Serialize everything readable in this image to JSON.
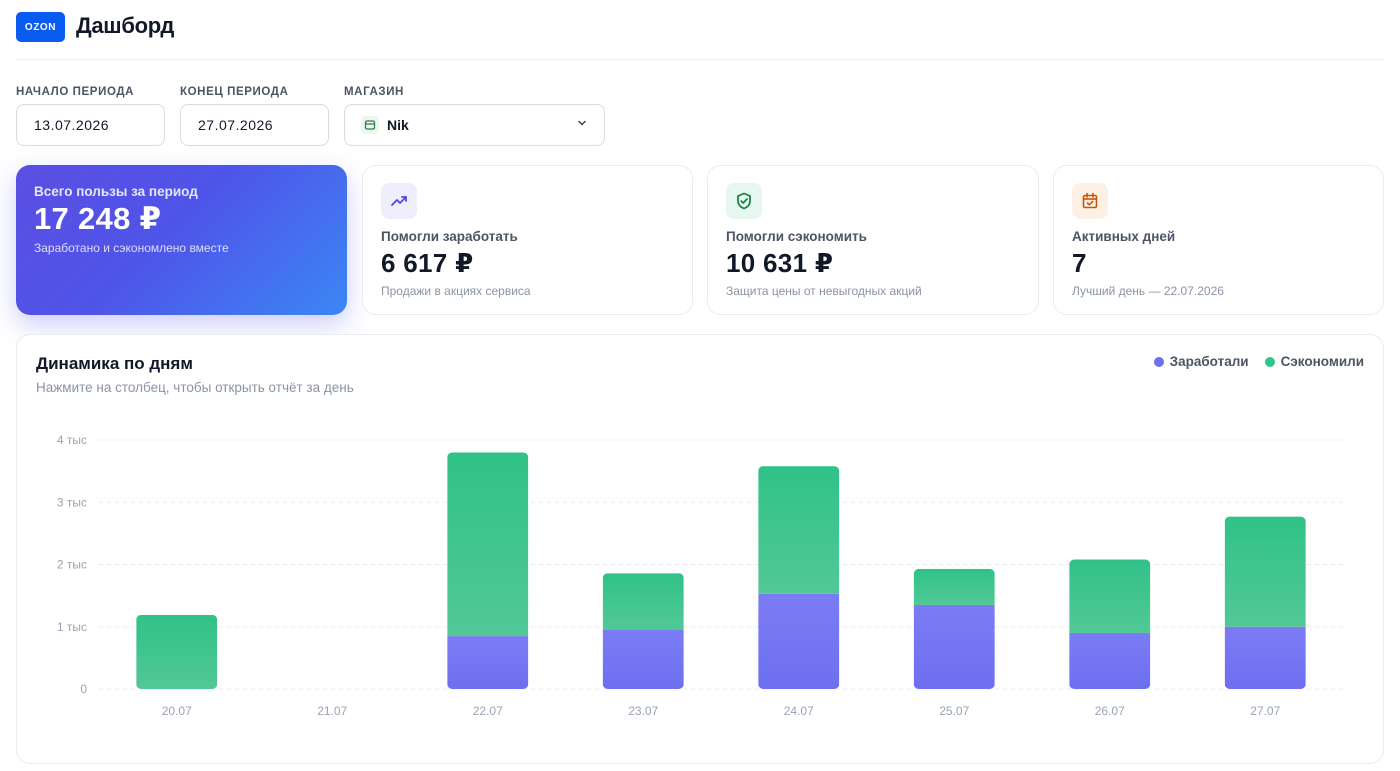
{
  "header": {
    "logo": "OZON",
    "title": "Дашборд"
  },
  "filters": {
    "start": {
      "label": "НАЧАЛО ПЕРИОДА",
      "value": "13.07.2026"
    },
    "end": {
      "label": "КОНЕЦ ПЕРИОДА",
      "value": "27.07.2026"
    },
    "store": {
      "label": "МАГАЗИН",
      "value": "Nik"
    }
  },
  "cards": {
    "total": {
      "label": "Всего пользы за период",
      "value": "17 248 ₽",
      "sub": "Заработано и сэкономлено вместе"
    },
    "earned": {
      "label": "Помогли заработать",
      "value": "6 617 ₽",
      "sub": "Продажи в акциях сервиса"
    },
    "saved": {
      "label": "Помогли сэкономить",
      "value": "10 631 ₽",
      "sub": "Защита цены от невыгодных акций"
    },
    "days": {
      "label": "Активных дней",
      "value": "7",
      "sub": "Лучший день — 22.07.2026"
    }
  },
  "chart_header": {
    "title": "Динамика по дням",
    "subtitle": "Нажмите на столбец, чтобы открыть отчёт за день",
    "legend_earned": "Заработали",
    "legend_saved": "Сэкономили"
  },
  "colors": {
    "accent": "#0a5bf0",
    "earned": "#6f6ff2",
    "saved": "#34c58c",
    "gradient_start": "#5b4fe2",
    "gradient_end": "#3b87f5"
  },
  "chart_data": {
    "type": "bar",
    "stacked": true,
    "categories": [
      "20.07",
      "21.07",
      "22.07",
      "23.07",
      "24.07",
      "25.07",
      "26.07",
      "27.07"
    ],
    "series": [
      {
        "name": "Заработали",
        "values": [
          0,
          0,
          850,
          960,
          1530,
          1350,
          900,
          1000
        ]
      },
      {
        "name": "Сэкономили",
        "values": [
          1190,
          0,
          2950,
          900,
          2050,
          580,
          1180,
          1770
        ]
      }
    ],
    "y_ticks": [
      "0",
      "1 тыс",
      "2 тыс",
      "3 тыс",
      "4 тыс"
    ],
    "ylim": [
      0,
      4000
    ],
    "grid": true
  }
}
